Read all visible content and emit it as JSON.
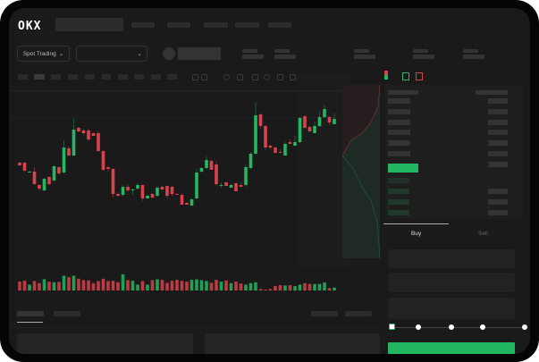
{
  "header": {
    "logo": "OKX"
  },
  "market_selector": {
    "label": "Spot Trading",
    "chevron": "chevron-down-icon"
  },
  "trade_panel": {
    "tabs": [
      "Buy",
      "Sell"
    ],
    "active_tab": "Buy",
    "slider_value_percent": 0
  },
  "colors": {
    "up": "#26b563",
    "down": "#d9424a",
    "background": "#1a1a1a",
    "accent_button": "#22b860"
  },
  "chart_data": {
    "type": "candlestick",
    "fields": [
      "open",
      "high",
      "low",
      "close",
      "volume"
    ],
    "candles": [
      [
        58,
        59,
        54,
        55,
        30
      ],
      [
        58,
        59,
        48,
        49,
        33
      ],
      [
        47,
        49,
        47,
        48,
        20
      ],
      [
        48,
        53,
        33,
        34,
        32
      ],
      [
        33,
        34,
        27,
        29,
        25
      ],
      [
        27,
        41,
        26,
        40,
        38
      ],
      [
        42,
        43,
        33,
        34,
        30
      ],
      [
        38,
        55,
        37,
        54,
        28
      ],
      [
        53,
        54,
        45,
        46,
        29
      ],
      [
        47,
        83,
        46,
        75,
        50
      ],
      [
        74,
        77,
        65,
        66,
        45
      ],
      [
        66,
        107,
        65,
        95,
        50
      ],
      [
        97,
        98,
        92,
        93,
        40
      ],
      [
        94,
        96,
        89,
        91,
        35
      ],
      [
        94,
        97,
        82,
        84,
        34
      ],
      [
        91,
        92,
        88,
        88,
        25
      ],
      [
        91,
        93,
        70,
        71,
        32
      ],
      [
        71,
        72,
        49,
        50,
        40
      ],
      [
        53,
        54,
        48,
        51,
        32
      ],
      [
        51,
        52,
        19,
        23,
        33
      ],
      [
        23,
        25,
        20,
        21,
        28
      ],
      [
        22,
        33,
        20,
        31,
        55
      ],
      [
        31,
        34,
        25,
        27,
        35
      ],
      [
        27,
        29,
        22,
        28,
        33
      ],
      [
        29,
        35,
        28,
        33,
        20
      ],
      [
        33,
        34,
        15,
        18,
        32
      ],
      [
        18,
        22,
        17,
        21,
        20
      ],
      [
        23,
        24,
        18,
        19,
        35
      ],
      [
        21,
        32,
        20,
        30,
        38
      ],
      [
        31,
        32,
        27,
        28,
        36
      ],
      [
        32,
        33,
        18,
        21,
        26
      ],
      [
        31,
        32,
        20,
        23,
        33
      ],
      [
        23,
        24,
        22,
        22,
        36
      ],
      [
        22,
        24,
        11,
        11,
        33
      ],
      [
        13,
        14,
        11,
        11,
        30
      ],
      [
        10,
        18,
        9,
        17,
        36
      ],
      [
        18,
        51,
        17,
        47,
        38
      ],
      [
        48,
        53,
        47,
        52,
        35
      ],
      [
        52,
        65,
        51,
        61,
        32
      ],
      [
        60,
        61,
        50,
        50,
        26
      ],
      [
        56,
        60,
        32,
        34,
        36
      ],
      [
        32,
        36,
        30,
        33,
        30
      ],
      [
        36,
        37,
        31,
        32,
        34
      ],
      [
        30,
        34,
        30,
        33,
        25
      ],
      [
        35,
        36,
        26,
        26,
        30
      ],
      [
        33,
        36,
        30,
        31,
        24
      ],
      [
        33,
        56,
        31,
        53,
        20
      ],
      [
        52,
        70,
        51,
        68,
        25
      ],
      [
        68,
        126,
        67,
        111,
        28
      ],
      [
        112,
        113,
        96,
        99,
        5
      ],
      [
        99,
        100,
        72,
        75,
        3
      ],
      [
        77,
        78,
        73,
        75,
        5
      ],
      [
        75,
        76,
        68,
        69,
        15
      ],
      [
        70,
        73,
        69,
        69,
        18
      ],
      [
        66,
        81,
        66,
        79,
        17
      ],
      [
        81,
        84,
        79,
        79,
        18
      ],
      [
        77,
        88,
        77,
        81,
        15
      ],
      [
        81,
        109,
        80,
        108,
        20
      ],
      [
        110,
        111,
        96,
        97,
        25
      ],
      [
        98,
        99,
        93,
        93,
        22
      ],
      [
        91,
        104,
        91,
        99,
        22
      ],
      [
        99,
        115,
        98,
        109,
        22
      ],
      [
        109,
        122,
        108,
        118,
        27
      ],
      [
        109,
        110,
        100,
        103,
        8
      ],
      [
        101,
        113,
        101,
        107,
        10
      ]
    ]
  }
}
